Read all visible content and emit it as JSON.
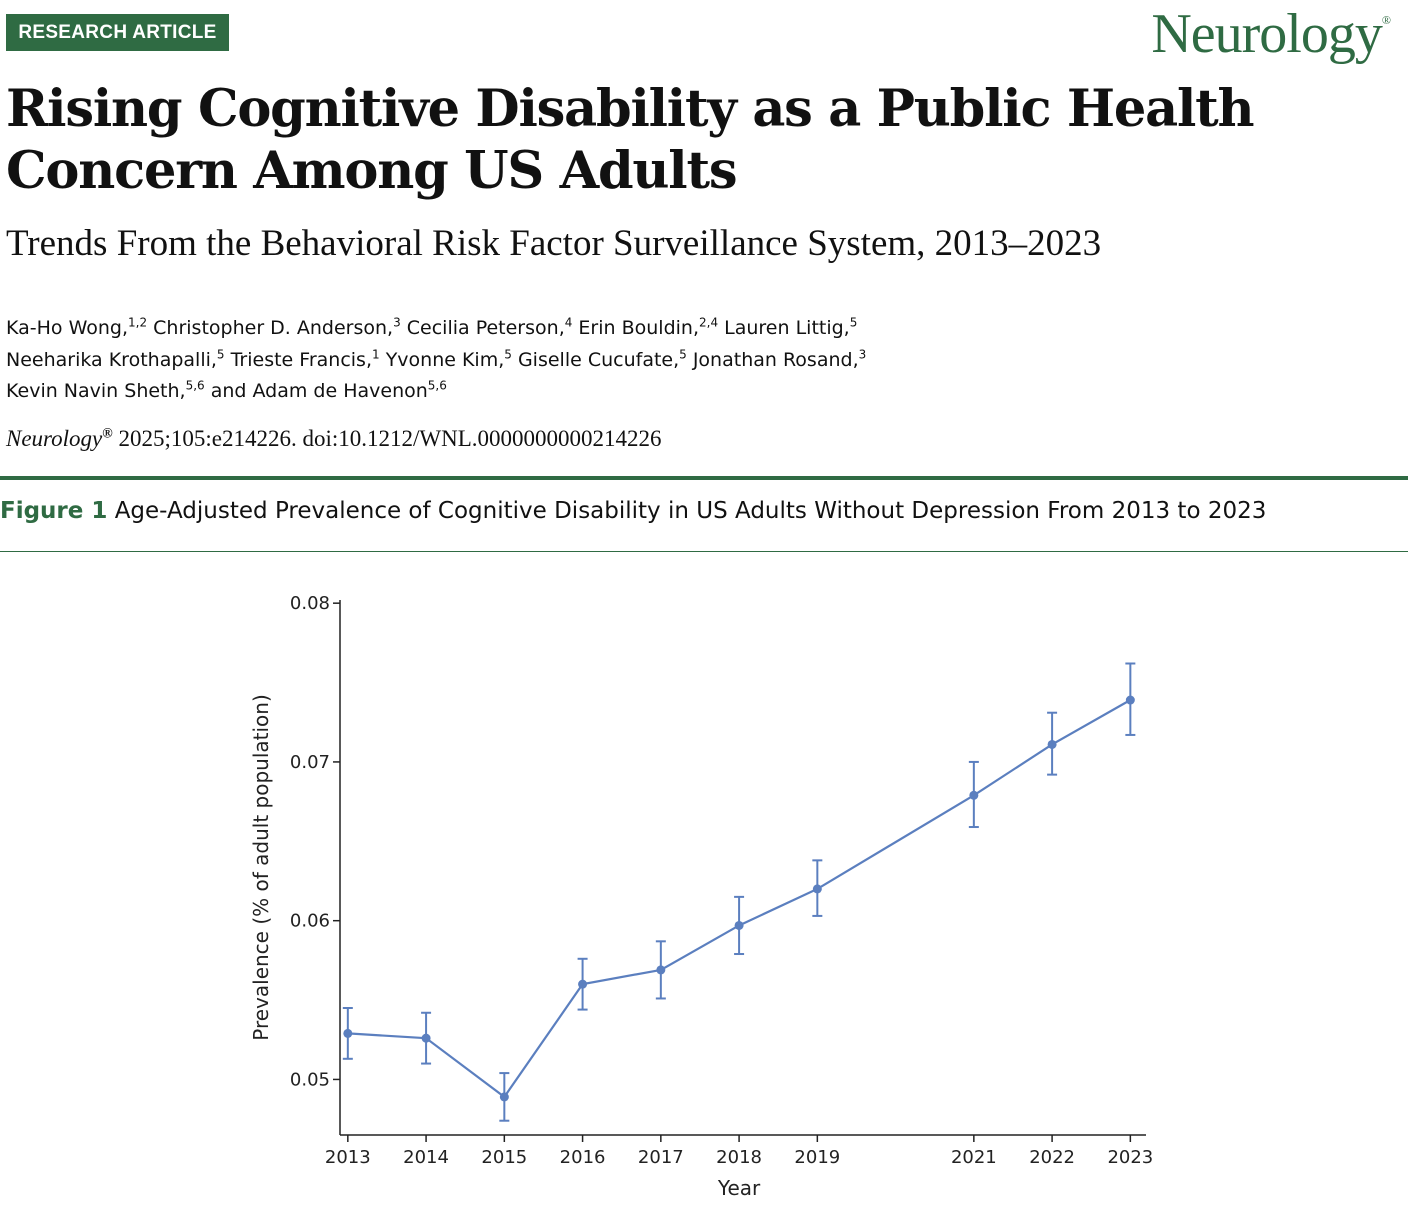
{
  "header": {
    "badge": "RESEARCH ARTICLE",
    "journal_logo": "Neurology",
    "logo_mark": "®"
  },
  "article": {
    "title": "Rising Cognitive Disability as a Public Health Concern Among US Adults",
    "subtitle": "Trends From the Behavioral Risk Factor Surveillance System, 2013–2023",
    "authors": [
      {
        "name": "Ka-Ho Wong,",
        "aff": "1,2"
      },
      {
        "name": "Christopher D. Anderson,",
        "aff": "3"
      },
      {
        "name": "Cecilia Peterson,",
        "aff": "4"
      },
      {
        "name": "Erin Bouldin,",
        "aff": "2,4"
      },
      {
        "name": "Lauren Littig,",
        "aff": "5"
      },
      {
        "name": "Neeharika Krothapalli,",
        "aff": "5"
      },
      {
        "name": "Trieste Francis,",
        "aff": "1"
      },
      {
        "name": "Yvonne Kim,",
        "aff": "5"
      },
      {
        "name": "Giselle Cucufate,",
        "aff": "5"
      },
      {
        "name": "Jonathan Rosand,",
        "aff": "3"
      },
      {
        "name": "Kevin Navin Sheth,",
        "aff": "5,6"
      },
      {
        "name": "and Adam de Havenon",
        "aff": "5,6"
      }
    ],
    "citation_journal": "Neurology",
    "citation_mark": "®",
    "citation_rest": " 2025;105:e214226. doi:10.1212/WNL.0000000000214226"
  },
  "figure": {
    "label": "Figure 1",
    "caption": "Age-Adjusted Prevalence of Cognitive Disability in US Adults Without Depression From 2013 to 2023"
  },
  "chart_data": {
    "type": "line",
    "title": "",
    "xlabel": "Year",
    "ylabel": "Prevalence (% of adult population)",
    "x": [
      2013,
      2014,
      2015,
      2016,
      2017,
      2018,
      2019,
      2021,
      2022,
      2023
    ],
    "x_tick_labels": [
      "2013",
      "2014",
      "2015",
      "2016",
      "2017",
      "2018",
      "2019",
      "2021",
      "2022",
      "2023"
    ],
    "series": [
      {
        "values": [
          0.0529,
          0.0526,
          0.0489,
          0.056,
          0.0569,
          0.0597,
          0.062,
          0.0679,
          0.0711,
          0.0739
        ],
        "lower": [
          0.0513,
          0.051,
          0.0474,
          0.0544,
          0.0551,
          0.0579,
          0.0603,
          0.0659,
          0.0692,
          0.0717
        ],
        "upper": [
          0.0545,
          0.0542,
          0.0504,
          0.0576,
          0.0587,
          0.0615,
          0.0638,
          0.07,
          0.0731,
          0.0762
        ],
        "color": "#5b7fbf"
      }
    ],
    "y_ticks": [
      0.05,
      0.06,
      0.07,
      0.08
    ],
    "y_tick_labels": [
      "0.05",
      "0.06",
      "0.07",
      "0.08"
    ],
    "ylim": [
      0.0465,
      0.0802
    ],
    "xlim": [
      2012.9,
      2023.2
    ],
    "grid": false,
    "legend": "none"
  }
}
